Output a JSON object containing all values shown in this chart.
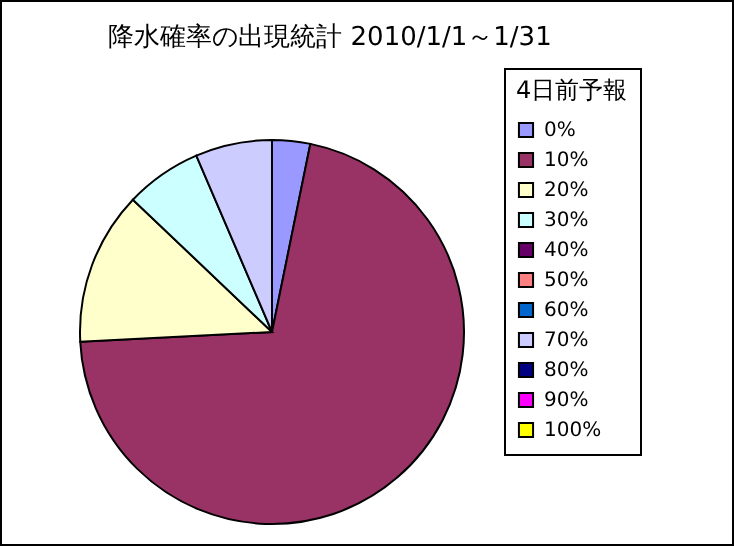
{
  "chart_data": {
    "type": "pie",
    "title": "降水確率の出現統計 2010/1/1～1/31",
    "legend_title": "4日前予報",
    "legend": "right",
    "categories": [
      "0%",
      "10%",
      "20%",
      "30%",
      "40%",
      "50%",
      "60%",
      "70%",
      "80%",
      "90%",
      "100%"
    ],
    "values": [
      3.2,
      71.0,
      12.9,
      6.45,
      0,
      0,
      0,
      6.45,
      0,
      0,
      0
    ],
    "colors": [
      "#9999ff",
      "#993366",
      "#ffffcc",
      "#ccffff",
      "#660066",
      "#ff8080",
      "#0066cc",
      "#ccccff",
      "#000080",
      "#ff00ff",
      "#ffff00"
    ]
  }
}
